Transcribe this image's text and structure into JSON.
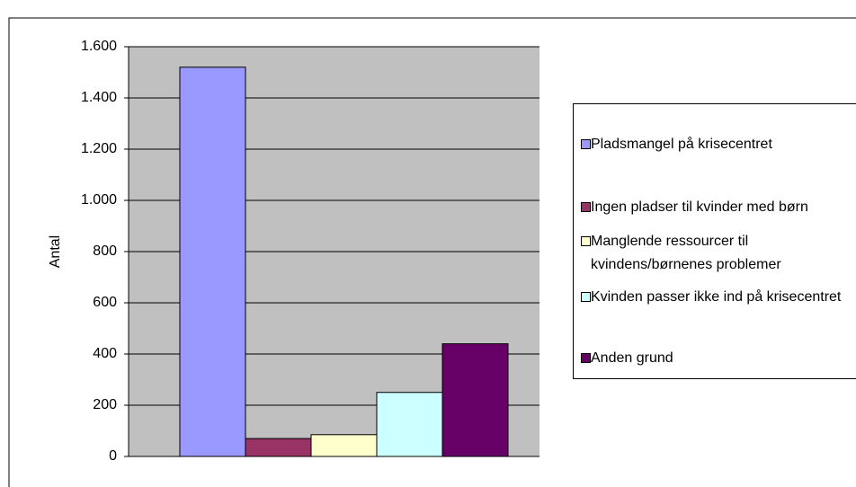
{
  "chart_data": {
    "type": "bar",
    "y_label": "Antal",
    "series": [
      {
        "name": "Pladsmangel på krisecentret",
        "color": "#9999ff",
        "values": [
          1520
        ]
      },
      {
        "name": "Ingen pladser til kvinder med børn",
        "color": "#993366",
        "values": [
          70
        ]
      },
      {
        "name": "Manglende ressourcer til kvindens/børnenes problemer",
        "color": "#ffffcc",
        "values": [
          85
        ]
      },
      {
        "name": "Kvinden passer ikke ind på krisecentret",
        "color": "#ccffff",
        "values": [
          250
        ]
      },
      {
        "name": "Anden grund",
        "color": "#660066",
        "values": [
          440
        ]
      }
    ],
    "ylim": [
      0,
      1600
    ],
    "yticks": [
      0,
      200,
      400,
      600,
      800,
      {
        "value": 1000,
        "label": "1.000"
      },
      {
        "value": 1200,
        "label": "1.200"
      },
      {
        "value": 1400,
        "label": "1.400"
      },
      {
        "value": 1600,
        "label": "1.600"
      }
    ],
    "grid": true,
    "plot_color": "#c0c0c0",
    "legend": "right"
  }
}
